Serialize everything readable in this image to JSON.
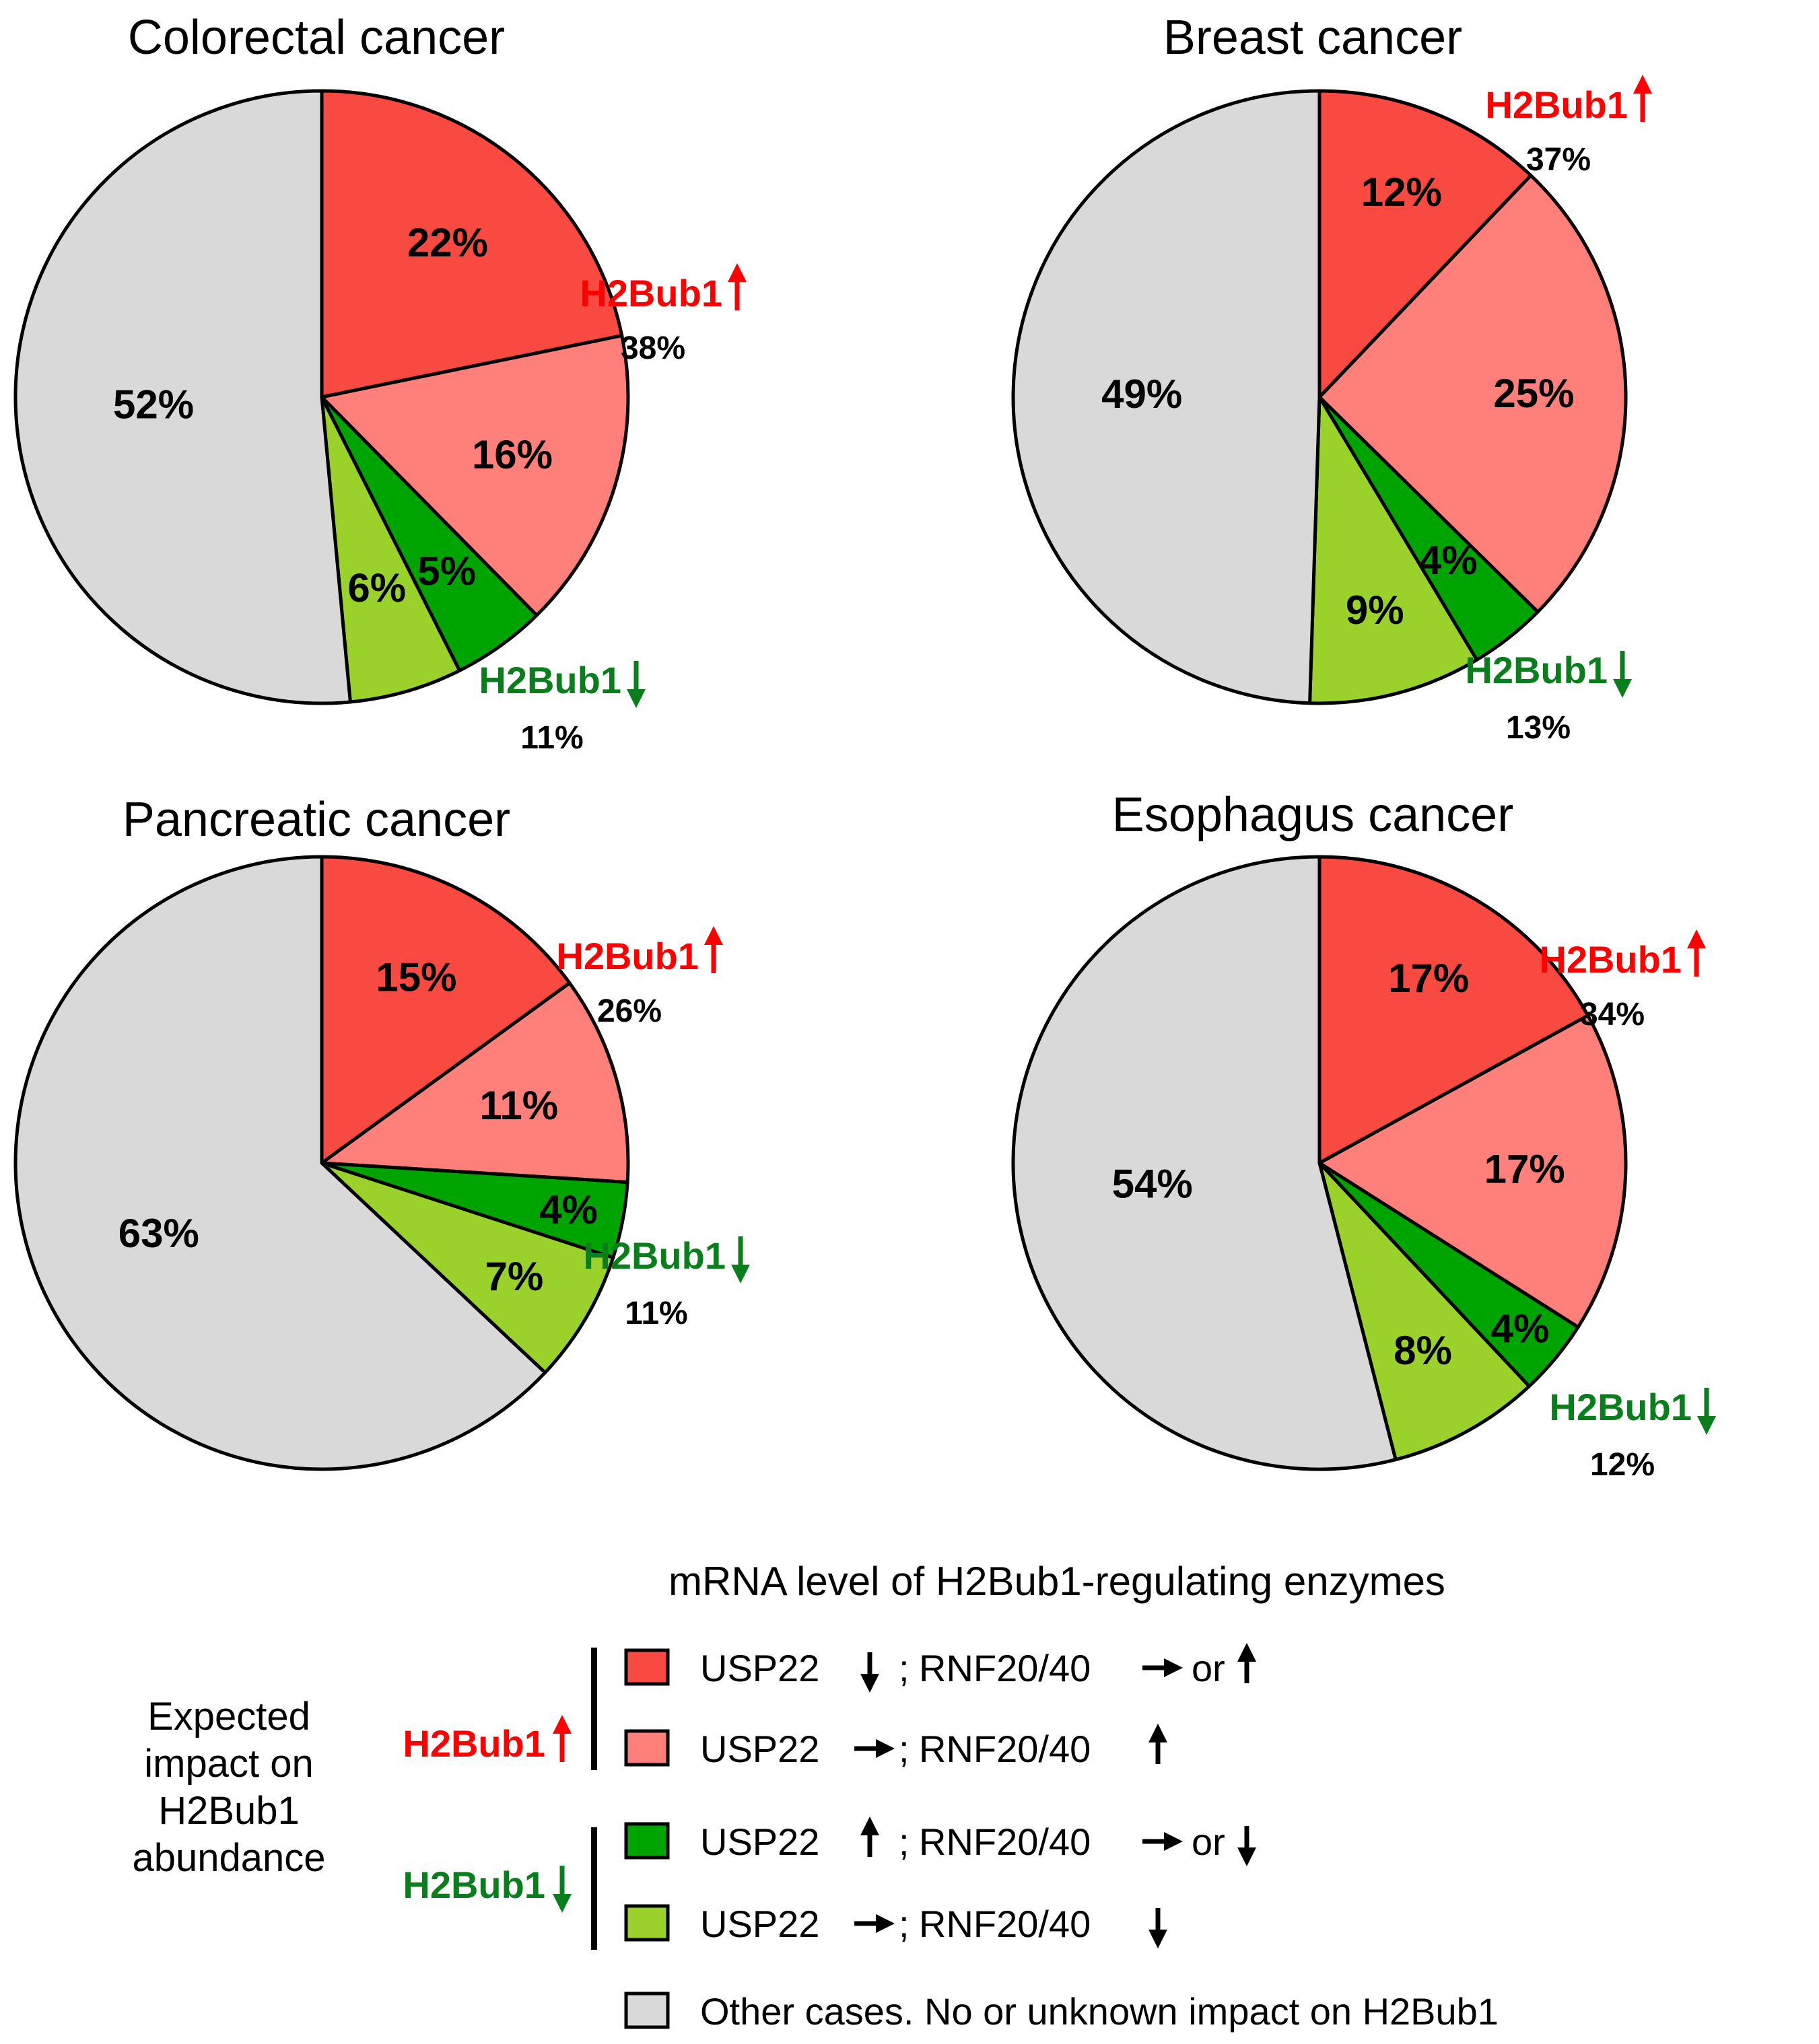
{
  "colors": {
    "red_dark": "#f94a42",
    "red_light": "#ff807a",
    "green_dark": "#00a400",
    "green_light": "#9ad22b",
    "gray": "#d9d9d9",
    "up_text": "#ff0000",
    "down_text": "#0a7d1c"
  },
  "chart_data": [
    {
      "type": "pie",
      "title": "Colorectal cancer",
      "slices": [
        {
          "label": "22%",
          "value": 22,
          "category": "USP22 down; RNF20/40 -> or up"
        },
        {
          "label": "16%",
          "value": 16,
          "category": "USP22 ->; RNF20/40 up"
        },
        {
          "label": "5%",
          "value": 5,
          "category": "USP22 up; RNF20/40 -> or down"
        },
        {
          "label": "6%",
          "value": 6,
          "category": "USP22 ->; RNF20/40 down"
        },
        {
          "label": "52%",
          "value": 52,
          "category": "Other cases"
        }
      ],
      "up_group": {
        "name": "H2Bub1",
        "pct": "38%"
      },
      "down_group": {
        "name": "H2Bub1",
        "pct": "11%"
      }
    },
    {
      "type": "pie",
      "title": "Breast cancer",
      "slices": [
        {
          "label": "12%",
          "value": 12,
          "category": "USP22 down; RNF20/40 -> or up"
        },
        {
          "label": "25%",
          "value": 25,
          "category": "USP22 ->; RNF20/40 up"
        },
        {
          "label": "4%",
          "value": 4,
          "category": "USP22 up; RNF20/40 -> or down"
        },
        {
          "label": "9%",
          "value": 9,
          "category": "USP22 ->; RNF20/40 down"
        },
        {
          "label": "49%",
          "value": 49,
          "category": "Other cases"
        }
      ],
      "up_group": {
        "name": "H2Bub1",
        "pct": "37%"
      },
      "down_group": {
        "name": "H2Bub1",
        "pct": "13%"
      }
    },
    {
      "type": "pie",
      "title": "Pancreatic cancer",
      "slices": [
        {
          "label": "15%",
          "value": 15,
          "category": "USP22 down; RNF20/40 -> or up"
        },
        {
          "label": "11%",
          "value": 11,
          "category": "USP22 ->; RNF20/40 up"
        },
        {
          "label": "4%",
          "value": 4,
          "category": "USP22 up; RNF20/40 -> or down"
        },
        {
          "label": "7%",
          "value": 7,
          "category": "USP22 ->; RNF20/40 down"
        },
        {
          "label": "63%",
          "value": 63,
          "category": "Other cases"
        }
      ],
      "up_group": {
        "name": "H2Bub1",
        "pct": "26%"
      },
      "down_group": {
        "name": "H2Bub1",
        "pct": "11%"
      }
    },
    {
      "type": "pie",
      "title": "Esophagus cancer",
      "slices": [
        {
          "label": "17%",
          "value": 17,
          "category": "USP22 down; RNF20/40 -> or up"
        },
        {
          "label": "17%",
          "value": 17,
          "category": "USP22 ->; RNF20/40 up"
        },
        {
          "label": "4%",
          "value": 4,
          "category": "USP22 up; RNF20/40 -> or down"
        },
        {
          "label": "8%",
          "value": 8,
          "category": "USP22 ->; RNF20/40 down"
        },
        {
          "label": "54%",
          "value": 54,
          "category": "Other cases"
        }
      ],
      "up_group": {
        "name": "H2Bub1",
        "pct": "34%"
      },
      "down_group": {
        "name": "H2Bub1",
        "pct": "12%"
      }
    }
  ],
  "legend": {
    "title": "mRNA level of H2Bub1-regulating enzymes",
    "impact_label_lines": [
      "Expected",
      "impact on",
      "H2Bub1",
      "abundance"
    ],
    "up_group_label": "H2Bub1",
    "down_group_label": "H2Bub1",
    "items": [
      {
        "usp": "USP22",
        "usp_arrow": "down",
        "sep": ";",
        "rnf": "RNF20/40",
        "rnf_arrow": "right",
        "or": "or",
        "alt_arrow": "up"
      },
      {
        "usp": "USP22",
        "usp_arrow": "right",
        "sep": ";",
        "rnf": "RNF20/40",
        "rnf_arrow": "up",
        "or": "",
        "alt_arrow": ""
      },
      {
        "usp": "USP22",
        "usp_arrow": "up",
        "sep": ";",
        "rnf": "RNF20/40",
        "rnf_arrow": "right",
        "or": "or",
        "alt_arrow": "down"
      },
      {
        "usp": "USP22",
        "usp_arrow": "right",
        "sep": ";",
        "rnf": "RNF20/40",
        "rnf_arrow": "down",
        "or": "",
        "alt_arrow": ""
      },
      {
        "text": "Other cases. No or unknown impact on H2Bub1"
      }
    ]
  }
}
